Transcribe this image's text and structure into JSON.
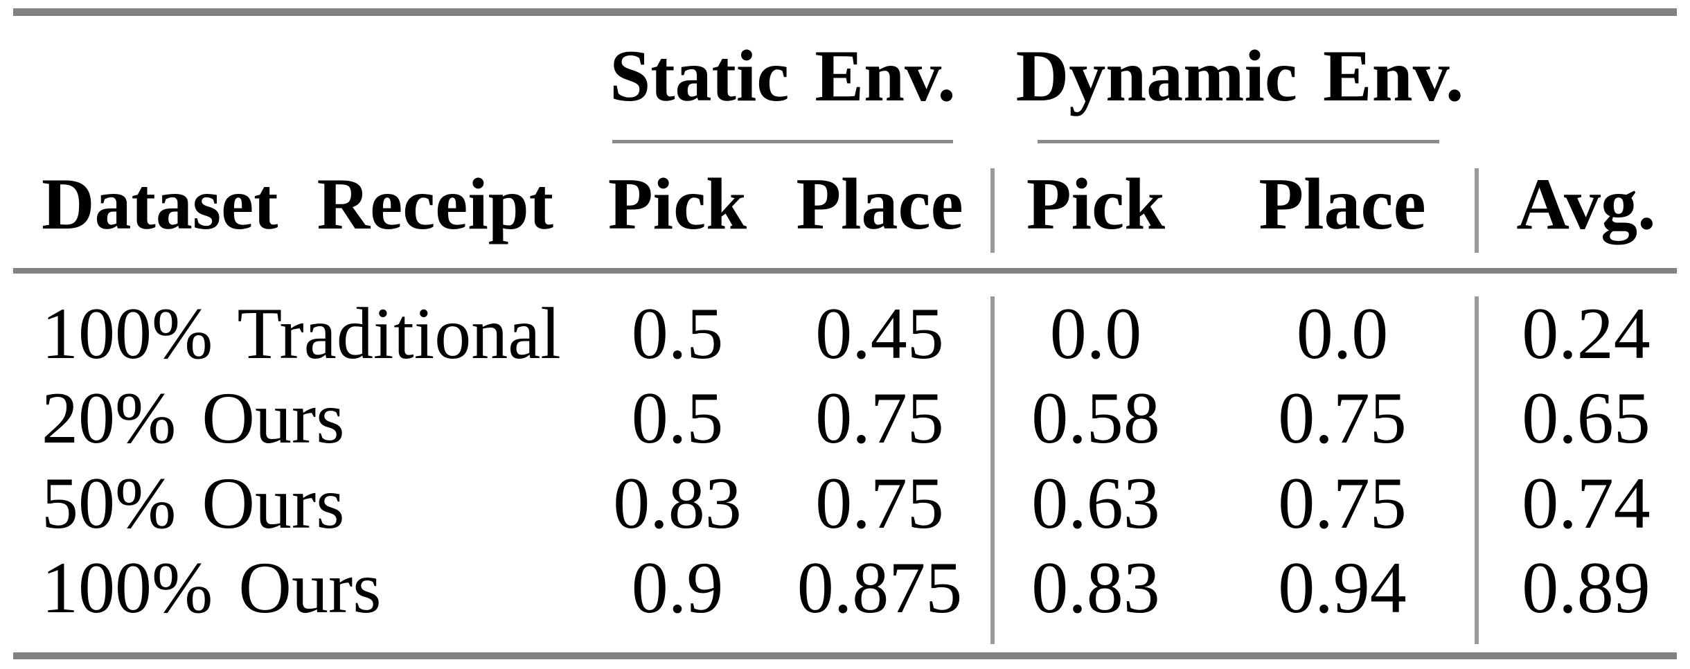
{
  "table": {
    "header": {
      "row_label": "Dataset Receipt",
      "groups": [
        {
          "label": "Static Env.",
          "sub": [
            "Pick",
            "Place"
          ]
        },
        {
          "label": "Dynamic Env.",
          "sub": [
            "Pick",
            "Place"
          ]
        }
      ],
      "avg": "Avg."
    },
    "rows": [
      {
        "label": "100% Traditional",
        "static_pick": "0.5",
        "static_place": "0.45",
        "dynamic_pick": "0.0",
        "dynamic_place": "0.0",
        "avg": "0.24"
      },
      {
        "label": "20% Ours",
        "static_pick": "0.5",
        "static_place": "0.75",
        "dynamic_pick": "0.58",
        "dynamic_place": "0.75",
        "avg": "0.65"
      },
      {
        "label": "50% Ours",
        "static_pick": "0.83",
        "static_place": "0.75",
        "dynamic_pick": "0.63",
        "dynamic_place": "0.75",
        "avg": "0.74"
      },
      {
        "label": "100% Ours",
        "static_pick": "0.9",
        "static_place": "0.875",
        "dynamic_pick": "0.83",
        "dynamic_place": "0.94",
        "avg": "0.89"
      }
    ],
    "colors": {
      "horizontal_rule": "#828282",
      "vertical_rule": "#9a9a9a",
      "text": "#000000",
      "background": "#ffffff"
    }
  }
}
